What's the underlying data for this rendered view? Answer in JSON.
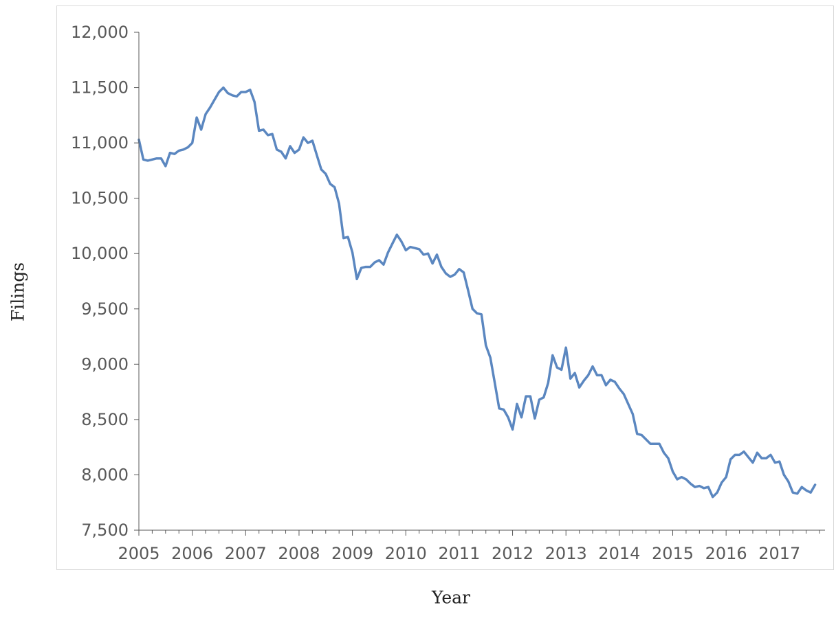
{
  "chart_data": {
    "type": "line",
    "title": "",
    "xlabel": "Year",
    "ylabel": "Filings",
    "ylim": [
      7500,
      12000
    ],
    "xlim": [
      2005,
      2017.75
    ],
    "y_ticks": [
      "7,500",
      "8,000",
      "8,500",
      "9,000",
      "9,500",
      "10,000",
      "10,500",
      "11,000",
      "11,500",
      "12,000"
    ],
    "y_tick_values": [
      7500,
      8000,
      8500,
      9000,
      9500,
      10000,
      10500,
      11000,
      11500,
      12000
    ],
    "x_ticks": [
      "2005",
      "2006",
      "2007",
      "2008",
      "2009",
      "2010",
      "2011",
      "2012",
      "2013",
      "2014",
      "2015",
      "2016",
      "2017"
    ],
    "grid": false,
    "legend": "none",
    "series": [
      {
        "color": "#5b87c0",
        "x": [
          2005.0,
          2005.0833,
          2005.1667,
          2005.25,
          2005.3333,
          2005.4167,
          2005.5,
          2005.5833,
          2005.6667,
          2005.75,
          2005.8333,
          2005.9167,
          2006.0,
          2006.0833,
          2006.1667,
          2006.25,
          2006.3333,
          2006.4167,
          2006.5,
          2006.5833,
          2006.6667,
          2006.75,
          2006.8333,
          2006.9167,
          2007.0,
          2007.0833,
          2007.1667,
          2007.25,
          2007.3333,
          2007.4167,
          2007.5,
          2007.5833,
          2007.6667,
          2007.75,
          2007.8333,
          2007.9167,
          2008.0,
          2008.0833,
          2008.1667,
          2008.25,
          2008.3333,
          2008.4167,
          2008.5,
          2008.5833,
          2008.6667,
          2008.75,
          2008.8333,
          2008.9167,
          2009.0,
          2009.0833,
          2009.1667,
          2009.25,
          2009.3333,
          2009.4167,
          2009.5,
          2009.5833,
          2009.6667,
          2009.75,
          2009.8333,
          2009.9167,
          2010.0,
          2010.0833,
          2010.1667,
          2010.25,
          2010.3333,
          2010.4167,
          2010.5,
          2010.5833,
          2010.6667,
          2010.75,
          2010.8333,
          2010.9167,
          2011.0,
          2011.0833,
          2011.1667,
          2011.25,
          2011.3333,
          2011.4167,
          2011.5,
          2011.5833,
          2011.6667,
          2011.75,
          2011.8333,
          2011.9167,
          2012.0,
          2012.0833,
          2012.1667,
          2012.25,
          2012.3333,
          2012.4167,
          2012.5,
          2012.5833,
          2012.6667,
          2012.75,
          2012.8333,
          2012.9167,
          2013.0,
          2013.0833,
          2013.1667,
          2013.25,
          2013.3333,
          2013.4167,
          2013.5,
          2013.5833,
          2013.6667,
          2013.75,
          2013.8333,
          2013.9167,
          2014.0,
          2014.0833,
          2014.1667,
          2014.25,
          2014.3333,
          2014.4167,
          2014.5,
          2014.5833,
          2014.6667,
          2014.75,
          2014.8333,
          2014.9167,
          2015.0,
          2015.0833,
          2015.1667,
          2015.25,
          2015.3333,
          2015.4167,
          2015.5,
          2015.5833,
          2015.6667,
          2015.75,
          2015.8333,
          2015.9167,
          2016.0,
          2016.0833,
          2016.1667,
          2016.25,
          2016.3333,
          2016.4167,
          2016.5,
          2016.5833,
          2016.6667,
          2016.75,
          2016.8333,
          2016.9167,
          2017.0,
          2017.0833,
          2017.1667,
          2017.25,
          2017.3333,
          2017.4167,
          2017.5,
          2017.5833,
          2017.6667
        ],
        "values": [
          11030,
          10850,
          10840,
          10850,
          10860,
          10860,
          10790,
          10910,
          10900,
          10930,
          10940,
          10960,
          11000,
          11230,
          11120,
          11260,
          11320,
          11390,
          11460,
          11500,
          11450,
          11430,
          11420,
          11460,
          11460,
          11480,
          11370,
          11110,
          11120,
          11070,
          11080,
          10940,
          10920,
          10860,
          10970,
          10910,
          10940,
          11050,
          11000,
          11020,
          10890,
          10760,
          10720,
          10630,
          10600,
          10450,
          10140,
          10150,
          10010,
          9770,
          9870,
          9880,
          9880,
          9920,
          9940,
          9900,
          10010,
          10090,
          10170,
          10110,
          10030,
          10060,
          10050,
          10040,
          9990,
          10000,
          9910,
          9990,
          9880,
          9820,
          9790,
          9810,
          9860,
          9830,
          9670,
          9500,
          9460,
          9450,
          9170,
          9060,
          8830,
          8600,
          8590,
          8520,
          8410,
          8640,
          8520,
          8710,
          8710,
          8510,
          8680,
          8700,
          8830,
          9080,
          8970,
          8950,
          9150,
          8870,
          8920,
          8790,
          8850,
          8900,
          8980,
          8900,
          8900,
          8810,
          8860,
          8840,
          8780,
          8730,
          8640,
          8550,
          8370,
          8360,
          8320,
          8280,
          8280,
          8280,
          8200,
          8150,
          8030,
          7960,
          7980,
          7960,
          7920,
          7890,
          7900,
          7880,
          7890,
          7800,
          7840,
          7930,
          7980,
          8140,
          8180,
          8180,
          8210,
          8160,
          8110,
          8200,
          8150,
          8150,
          8180,
          8110,
          8120,
          8000,
          7940,
          7840,
          7830,
          7890,
          7860,
          7840,
          7910
        ]
      }
    ]
  }
}
